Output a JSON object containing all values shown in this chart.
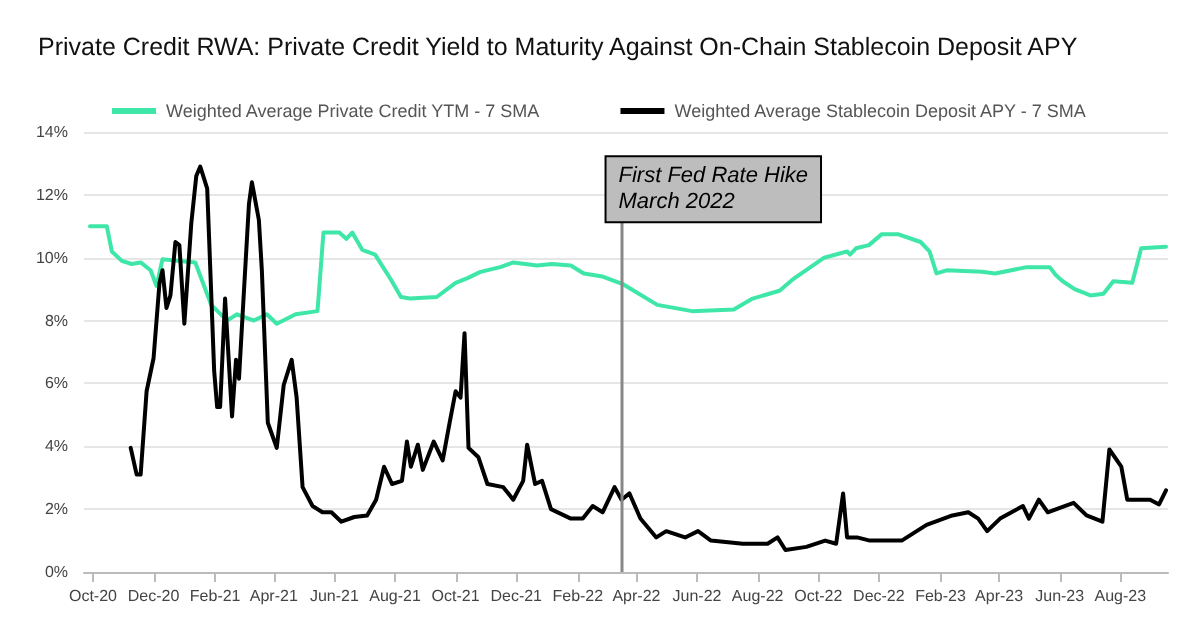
{
  "chart_data": {
    "type": "line",
    "title": "Private Credit RWA: Private Credit Yield to Maturity Against On-Chain Stablecoin Deposit APY",
    "xlim": [
      "2020-09-22",
      "2023-09-18"
    ],
    "xticks": [
      {
        "value": "2020-10-01",
        "label": "Oct-20"
      },
      {
        "value": "2020-12-01",
        "label": "Dec-20"
      },
      {
        "value": "2021-02-01",
        "label": "Feb-21"
      },
      {
        "value": "2021-04-01",
        "label": "Apr-21"
      },
      {
        "value": "2021-06-01",
        "label": "Jun-21"
      },
      {
        "value": "2021-08-01",
        "label": "Aug-21"
      },
      {
        "value": "2021-10-01",
        "label": "Oct-21"
      },
      {
        "value": "2021-12-01",
        "label": "Dec-21"
      },
      {
        "value": "2022-02-01",
        "label": "Feb-22"
      },
      {
        "value": "2022-04-01",
        "label": "Apr-22"
      },
      {
        "value": "2022-06-01",
        "label": "Jun-22"
      },
      {
        "value": "2022-08-01",
        "label": "Aug-22"
      },
      {
        "value": "2022-10-01",
        "label": "Oct-22"
      },
      {
        "value": "2022-12-01",
        "label": "Dec-22"
      },
      {
        "value": "2023-02-01",
        "label": "Feb-23"
      },
      {
        "value": "2023-04-01",
        "label": "Apr-23"
      },
      {
        "value": "2023-06-01",
        "label": "Jun-23"
      },
      {
        "value": "2023-08-01",
        "label": "Aug-23"
      }
    ],
    "ylim": [
      0,
      14
    ],
    "yticks": [
      {
        "value": 0,
        "label": "0%"
      },
      {
        "value": 2,
        "label": "2%"
      },
      {
        "value": 4,
        "label": "4%"
      },
      {
        "value": 6,
        "label": "6%"
      },
      {
        "value": 8,
        "label": "8%"
      },
      {
        "value": 10,
        "label": "10%"
      },
      {
        "value": 12,
        "label": "12%"
      },
      {
        "value": 14,
        "label": "14%"
      }
    ],
    "grid": "y",
    "legend": "top",
    "marker": "none",
    "line_style": "solid",
    "ref_lines": [
      {
        "axis": "x",
        "value": "2022-03-16",
        "label": "First Fed Rate Hike\nMarch 2022",
        "color": "#888888"
      }
    ],
    "series": [
      {
        "name": "Weighted Average Private Credit YTM - 7 SMA",
        "color": "#3ee6a8",
        "x": [
          "2020-09-28",
          "2020-10-15",
          "2020-10-20",
          "2020-10-30",
          "2020-11-09",
          "2020-11-18",
          "2020-11-28",
          "2020-12-04",
          "2020-12-10",
          "2021-01-12",
          "2021-01-28",
          "2021-02-13",
          "2021-02-23",
          "2021-03-12",
          "2021-03-25",
          "2021-04-04",
          "2021-04-23",
          "2021-05-15",
          "2021-05-21",
          "2021-06-06",
          "2021-06-13",
          "2021-06-19",
          "2021-06-29",
          "2021-07-12",
          "2021-07-28",
          "2021-08-07",
          "2021-08-16",
          "2021-09-12",
          "2021-10-01",
          "2021-10-13",
          "2021-10-26",
          "2021-11-15",
          "2021-11-28",
          "2021-12-22",
          "2022-01-06",
          "2022-01-25",
          "2022-02-07",
          "2022-02-26",
          "2022-03-19",
          "2022-04-22",
          "2022-05-27",
          "2022-07-08",
          "2022-07-27",
          "2022-08-23",
          "2022-09-05",
          "2022-10-07",
          "2022-10-30",
          "2022-11-02",
          "2022-11-08",
          "2022-11-21",
          "2022-12-04",
          "2022-12-20",
          "2023-01-12",
          "2023-01-21",
          "2023-01-28",
          "2023-02-07",
          "2023-03-15",
          "2023-03-28",
          "2023-04-29",
          "2023-05-22",
          "2023-05-28",
          "2023-06-04",
          "2023-06-16",
          "2023-07-02",
          "2023-07-15",
          "2023-07-25",
          "2023-08-13",
          "2023-08-22",
          "2023-09-16"
        ],
        "values": [
          11.0,
          11.0,
          10.2,
          9.9,
          9.8,
          9.85,
          9.6,
          9.1,
          9.95,
          9.85,
          8.5,
          8.0,
          8.2,
          8.0,
          8.2,
          7.9,
          8.2,
          8.3,
          10.8,
          10.8,
          10.6,
          10.8,
          10.25,
          10.1,
          9.3,
          8.75,
          8.7,
          8.75,
          9.2,
          9.35,
          9.55,
          9.7,
          9.85,
          9.75,
          9.8,
          9.75,
          9.5,
          9.4,
          9.15,
          8.5,
          8.3,
          8.35,
          8.7,
          8.95,
          9.3,
          10.0,
          10.2,
          10.1,
          10.3,
          10.4,
          10.75,
          10.75,
          10.5,
          10.2,
          9.5,
          9.6,
          9.55,
          9.5,
          9.7,
          9.7,
          9.45,
          9.25,
          9.0,
          8.8,
          8.85,
          9.25,
          9.2,
          10.3,
          10.35
        ]
      },
      {
        "name": "Weighted Average Stablecoin Deposit APY - 7 SMA",
        "color": "#000000",
        "x": [
          "2020-11-08",
          "2020-11-14",
          "2020-11-18",
          "2020-11-24",
          "2020-12-01",
          "2020-12-07",
          "2020-12-10",
          "2020-12-14",
          "2020-12-18",
          "2020-12-23",
          "2020-12-27",
          "2021-01-01",
          "2021-01-08",
          "2021-01-13",
          "2021-01-17",
          "2021-01-21",
          "2021-01-24",
          "2021-01-31",
          "2021-02-03",
          "2021-02-06",
          "2021-02-11",
          "2021-02-18",
          "2021-02-22",
          "2021-02-25",
          "2021-03-01",
          "2021-03-07",
          "2021-03-10",
          "2021-03-17",
          "2021-03-20",
          "2021-03-26",
          "2021-04-04",
          "2021-04-11",
          "2021-04-19",
          "2021-04-24",
          "2021-04-30",
          "2021-05-10",
          "2021-05-20",
          "2021-05-29",
          "2021-06-08",
          "2021-06-21",
          "2021-07-04",
          "2021-07-13",
          "2021-07-21",
          "2021-07-29",
          "2021-08-08",
          "2021-08-13",
          "2021-08-17",
          "2021-08-24",
          "2021-08-29",
          "2021-09-09",
          "2021-09-18",
          "2021-09-25",
          "2021-10-01",
          "2021-10-06",
          "2021-10-10",
          "2021-10-14",
          "2021-10-24",
          "2021-11-02",
          "2021-11-18",
          "2021-11-28",
          "2021-12-08",
          "2021-12-12",
          "2021-12-20",
          "2021-12-27",
          "2022-01-05",
          "2022-01-25",
          "2022-02-06",
          "2022-02-16",
          "2022-02-26",
          "2022-03-10",
          "2022-03-17",
          "2022-03-25",
          "2022-04-05",
          "2022-04-21",
          "2022-05-01",
          "2022-05-20",
          "2022-06-02",
          "2022-06-15",
          "2022-07-17",
          "2022-08-11",
          "2022-08-21",
          "2022-08-29",
          "2022-09-19",
          "2022-10-08",
          "2022-10-19",
          "2022-10-26",
          "2022-10-30",
          "2022-11-09",
          "2022-11-22",
          "2022-12-24",
          "2023-01-18",
          "2023-02-13",
          "2023-03-01",
          "2023-03-11",
          "2023-03-20",
          "2023-04-02",
          "2023-04-25",
          "2023-05-01",
          "2023-05-11",
          "2023-05-20",
          "2023-06-15",
          "2023-06-28",
          "2023-07-14",
          "2023-07-21",
          "2023-08-02",
          "2023-08-08",
          "2023-08-31",
          "2023-09-09",
          "2023-09-16"
        ],
        "values": [
          3.95,
          3.1,
          3.1,
          5.75,
          6.8,
          9.2,
          9.6,
          8.4,
          8.8,
          10.5,
          10.4,
          7.9,
          11.1,
          12.6,
          12.9,
          12.5,
          12.2,
          6.4,
          5.25,
          5.25,
          8.7,
          4.95,
          6.75,
          6.15,
          8.4,
          11.7,
          12.4,
          11.2,
          9.6,
          4.75,
          3.95,
          5.95,
          6.75,
          5.55,
          2.7,
          2.1,
          1.9,
          1.9,
          1.6,
          1.75,
          1.8,
          2.3,
          3.35,
          2.8,
          2.9,
          4.15,
          3.35,
          4.05,
          3.25,
          4.15,
          3.55,
          4.75,
          5.75,
          5.55,
          7.6,
          3.95,
          3.65,
          2.8,
          2.7,
          2.3,
          2.9,
          4.05,
          2.8,
          2.9,
          2.0,
          1.7,
          1.7,
          2.1,
          1.9,
          2.7,
          2.3,
          2.5,
          1.7,
          1.1,
          1.3,
          1.1,
          1.3,
          1.0,
          0.9,
          0.9,
          1.1,
          0.7,
          0.8,
          1.0,
          0.9,
          2.5,
          1.1,
          1.1,
          1.0,
          1.0,
          1.5,
          1.8,
          1.9,
          1.7,
          1.3,
          1.7,
          2.1,
          1.7,
          2.3,
          1.9,
          2.2,
          1.8,
          1.6,
          3.9,
          3.35,
          2.3,
          2.3,
          2.15,
          2.6
        ]
      }
    ]
  }
}
